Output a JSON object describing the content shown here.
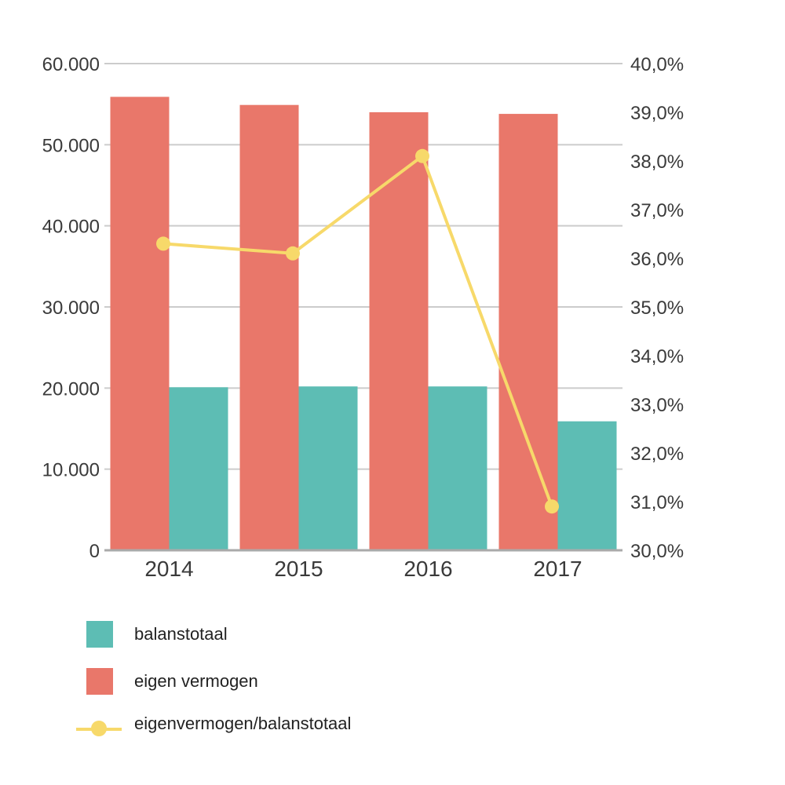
{
  "chart_data": {
    "type": "bar",
    "categories": [
      "2014",
      "2015",
      "2016",
      "2017"
    ],
    "series": [
      {
        "name": "eigen vermogen",
        "kind": "bar",
        "axis": "left",
        "color": "#E9776A",
        "values": [
          55900,
          54900,
          54000,
          53800
        ]
      },
      {
        "name": "balanstotaal",
        "kind": "bar",
        "axis": "left",
        "color": "#5DBDB4",
        "values": [
          20100,
          20200,
          20200,
          15900
        ]
      },
      {
        "name": "eigenvermogen/balanstotaal",
        "kind": "line",
        "axis": "right",
        "color": "#F7D96A",
        "values": [
          36.3,
          36.1,
          38.1,
          30.9
        ]
      }
    ],
    "y_left": {
      "lim": [
        0,
        60000
      ],
      "tick_values": [
        0,
        10000,
        20000,
        30000,
        40000,
        50000,
        60000
      ],
      "tick_labels": [
        "0",
        "10.000",
        "20.000",
        "30.000",
        "40.000",
        "50.000",
        "60.000"
      ]
    },
    "y_right": {
      "lim": [
        30,
        40
      ],
      "tick_values": [
        30,
        31,
        32,
        33,
        34,
        35,
        36,
        37,
        38,
        39,
        40
      ],
      "tick_labels": [
        "30,0%",
        "31,0%",
        "32,0%",
        "33,0%",
        "34,0%",
        "35,0%",
        "36,0%",
        "37,0%",
        "38,0%",
        "39,0%",
        "40,0%"
      ]
    },
    "grid": true,
    "grid_color": "#CCCCCC",
    "axis_color": "#AAAAAA",
    "legend_position": "bottom-left",
    "title": "",
    "xlabel": "",
    "ylabel": ""
  },
  "legend": [
    {
      "label": "balanstotaal",
      "color": "#5DBDB4",
      "kind": "bar"
    },
    {
      "label": "eigen vermogen",
      "color": "#E9776A",
      "kind": "bar"
    },
    {
      "label": "eigenvermogen/balanstotaal",
      "color": "#F7D96A",
      "kind": "line"
    }
  ]
}
